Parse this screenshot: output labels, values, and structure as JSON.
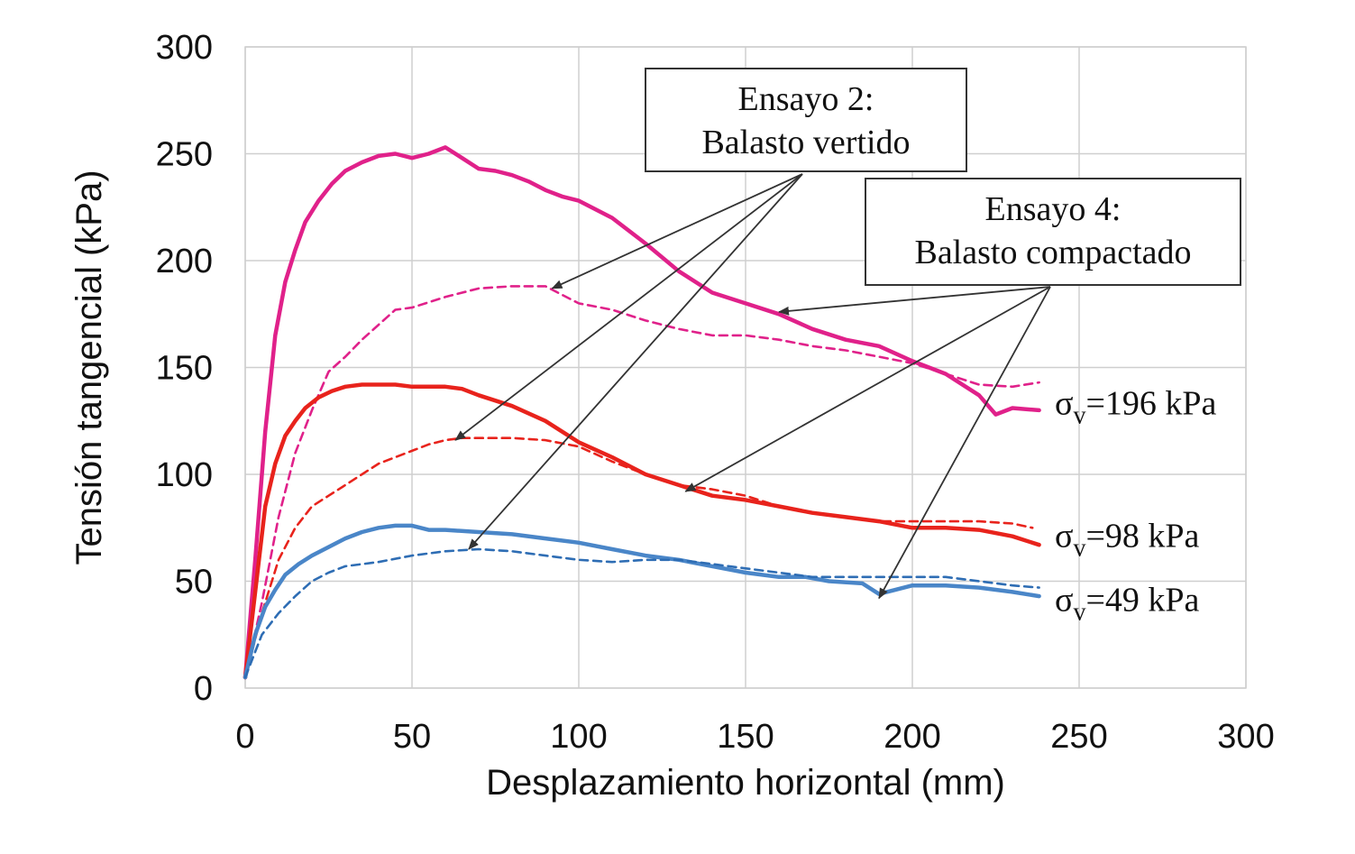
{
  "chart_data": {
    "type": "line",
    "xlabel": "Desplazamiento horizontal (mm)",
    "ylabel": "Tensión tangencial (kPa)",
    "xlim": [
      0,
      300
    ],
    "ylim": [
      0,
      300
    ],
    "xticks": [
      "0",
      "50",
      "100",
      "150",
      "200",
      "250",
      "300"
    ],
    "yticks": [
      "0",
      "50",
      "100",
      "150",
      "200",
      "250",
      "300"
    ],
    "grid": true,
    "series": [
      {
        "id": "s196_compactado",
        "style": "solid",
        "color": "#e0218a",
        "x": [
          0,
          3,
          6,
          9,
          12,
          15,
          18,
          22,
          26,
          30,
          35,
          40,
          45,
          50,
          55,
          60,
          65,
          70,
          75,
          80,
          85,
          90,
          95,
          100,
          110,
          120,
          130,
          140,
          150,
          160,
          170,
          180,
          190,
          200,
          210,
          220,
          225,
          230,
          238
        ],
        "y": [
          5,
          60,
          120,
          165,
          190,
          205,
          218,
          228,
          236,
          242,
          246,
          249,
          250,
          248,
          250,
          253,
          248,
          243,
          242,
          240,
          237,
          233,
          230,
          228,
          220,
          208,
          195,
          185,
          180,
          175,
          168,
          163,
          160,
          153,
          147,
          137,
          128,
          131,
          130
        ]
      },
      {
        "id": "s196_vertido",
        "style": "dashed",
        "color": "#e0218a",
        "x": [
          0,
          5,
          10,
          15,
          20,
          25,
          30,
          35,
          40,
          45,
          50,
          60,
          70,
          80,
          90,
          100,
          110,
          120,
          130,
          140,
          150,
          160,
          170,
          180,
          190,
          200,
          210,
          220,
          230,
          238
        ],
        "y": [
          5,
          40,
          80,
          110,
          130,
          148,
          155,
          163,
          170,
          177,
          178,
          183,
          187,
          188,
          188,
          180,
          177,
          172,
          168,
          165,
          165,
          163,
          160,
          158,
          155,
          152,
          147,
          142,
          141,
          143
        ]
      },
      {
        "id": "s98_compactado",
        "style": "solid",
        "color": "#e8231c",
        "x": [
          0,
          3,
          6,
          9,
          12,
          15,
          18,
          22,
          26,
          30,
          35,
          40,
          45,
          50,
          55,
          60,
          65,
          70,
          80,
          90,
          100,
          110,
          120,
          130,
          140,
          150,
          160,
          170,
          180,
          190,
          200,
          210,
          220,
          230,
          238
        ],
        "y": [
          5,
          45,
          85,
          105,
          118,
          125,
          131,
          136,
          139,
          141,
          142,
          142,
          142,
          141,
          141,
          141,
          140,
          137,
          132,
          125,
          115,
          108,
          100,
          95,
          90,
          88,
          85,
          82,
          80,
          78,
          75,
          75,
          74,
          71,
          67
        ]
      },
      {
        "id": "s98_vertido",
        "style": "dashed",
        "color": "#e8231c",
        "x": [
          0,
          5,
          10,
          15,
          20,
          25,
          30,
          35,
          40,
          45,
          50,
          55,
          60,
          65,
          70,
          80,
          90,
          100,
          110,
          120,
          130,
          140,
          150,
          160,
          170,
          180,
          190,
          200,
          210,
          220,
          230,
          236
        ],
        "y": [
          5,
          35,
          60,
          75,
          85,
          90,
          95,
          100,
          105,
          108,
          111,
          114,
          116,
          117,
          117,
          117,
          116,
          113,
          106,
          100,
          95,
          93,
          90,
          85,
          82,
          80,
          78,
          78,
          78,
          78,
          77,
          75
        ]
      },
      {
        "id": "s49_compactado",
        "style": "solid",
        "color": "#4a86c8",
        "x": [
          0,
          3,
          6,
          9,
          12,
          16,
          20,
          25,
          30,
          35,
          40,
          45,
          50,
          55,
          60,
          70,
          80,
          90,
          100,
          110,
          120,
          130,
          140,
          150,
          160,
          168,
          175,
          185,
          190,
          200,
          210,
          220,
          230,
          238
        ],
        "y": [
          5,
          25,
          38,
          46,
          53,
          58,
          62,
          66,
          70,
          73,
          75,
          76,
          76,
          74,
          74,
          73,
          72,
          70,
          68,
          65,
          62,
          60,
          57,
          54,
          52,
          52,
          50,
          49,
          44,
          48,
          48,
          47,
          45,
          43
        ]
      },
      {
        "id": "s49_vertido",
        "style": "dashed",
        "color": "#2e6db4",
        "x": [
          0,
          5,
          10,
          15,
          20,
          25,
          30,
          40,
          50,
          60,
          70,
          80,
          90,
          100,
          110,
          120,
          130,
          140,
          150,
          160,
          170,
          180,
          190,
          200,
          210,
          220,
          230,
          238
        ],
        "y": [
          5,
          25,
          35,
          43,
          50,
          54,
          57,
          59,
          62,
          64,
          65,
          64,
          62,
          60,
          59,
          60,
          60,
          58,
          56,
          54,
          52,
          52,
          52,
          52,
          52,
          50,
          48,
          47
        ]
      }
    ],
    "series_labels": [
      {
        "sigma": "σ",
        "sub": "v",
        "text": "=196 kPa",
        "y": 134
      },
      {
        "sigma": "σ",
        "sub": "v",
        "text": "=98 kPa",
        "y": 72
      },
      {
        "sigma": "σ",
        "sub": "v",
        "text": "=49 kPa",
        "y": 42
      }
    ],
    "annotations": [
      {
        "id": "ensayo2",
        "lines": [
          "Ensayo 2:",
          "Balasto vertido"
        ],
        "arrow_targets": [
          [
            92,
            187
          ],
          [
            63,
            116
          ],
          [
            67,
            65
          ]
        ]
      },
      {
        "id": "ensayo4",
        "lines": [
          "Ensayo 4:",
          "Balasto compactado"
        ],
        "arrow_targets": [
          [
            160,
            176
          ],
          [
            132,
            92
          ],
          [
            190,
            42
          ]
        ]
      }
    ]
  }
}
